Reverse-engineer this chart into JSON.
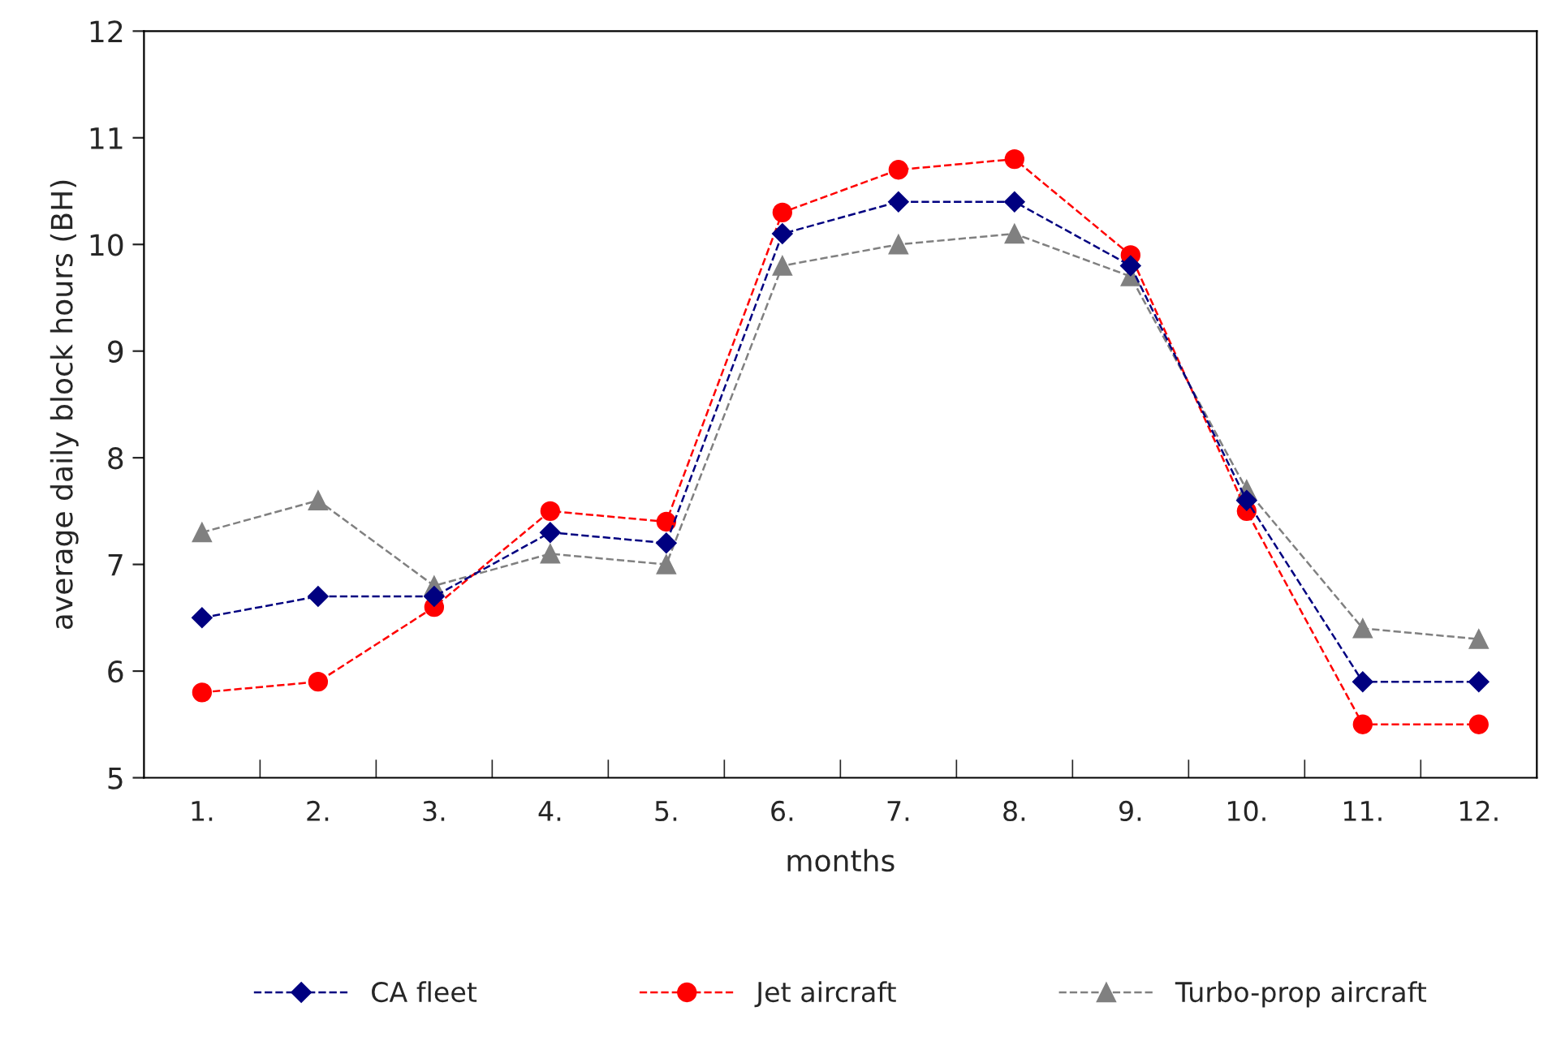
{
  "chart_data": {
    "type": "line",
    "xlabel": "months",
    "ylabel": "average daily block hours (BH)",
    "categories": [
      "1.",
      "2.",
      "3.",
      "4.",
      "5.",
      "6.",
      "7.",
      "8.",
      "9.",
      "10.",
      "11.",
      "12."
    ],
    "series": [
      {
        "name": "CA fleet",
        "color": "#000080",
        "marker": "diamond",
        "values": [
          6.5,
          6.7,
          6.7,
          7.3,
          7.2,
          10.1,
          10.4,
          10.4,
          9.8,
          7.6,
          5.9,
          5.9
        ]
      },
      {
        "name": "Jet aircraft",
        "color": "#ff0000",
        "marker": "circle",
        "values": [
          5.8,
          5.9,
          6.6,
          7.5,
          7.4,
          10.3,
          10.7,
          10.8,
          9.9,
          7.5,
          5.5,
          5.5
        ]
      },
      {
        "name": "Turbo-prop aircraft",
        "color": "#808080",
        "marker": "triangle",
        "values": [
          7.3,
          7.6,
          6.8,
          7.1,
          7.0,
          9.8,
          10.0,
          10.1,
          9.7,
          7.7,
          6.4,
          6.3
        ]
      }
    ],
    "ylim": [
      5,
      12
    ],
    "yticks": [
      5,
      6,
      7,
      8,
      9,
      10,
      11,
      12
    ],
    "line_style": "dashed",
    "grid": false,
    "legend": "bottom"
  }
}
